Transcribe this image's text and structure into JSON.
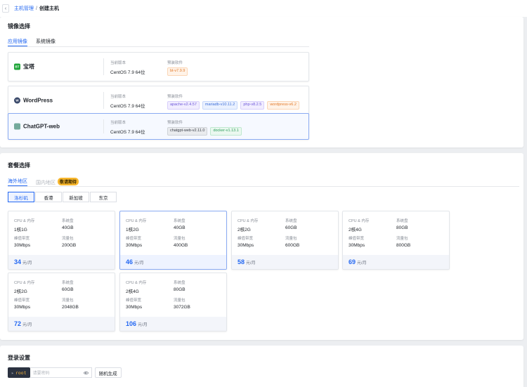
{
  "breadcrumb": {
    "parent": "主机管理",
    "separator": "/",
    "current": "创建主机"
  },
  "image_section": {
    "title": "镜像选择",
    "tabs": [
      {
        "label": "应用镜像",
        "active": true
      },
      {
        "label": "系统镜像",
        "active": false
      }
    ],
    "version_label": "当前版本",
    "software_label": "预装软件",
    "cards": [
      {
        "name": "宝塔",
        "logo": "BT",
        "logo_color": "#20a53a",
        "version": "CentOS 7.9 64位",
        "software": [
          {
            "label": "bt-v7.9.9",
            "color": "orange"
          }
        ],
        "selected": false
      },
      {
        "name": "WordPress",
        "logo": "W",
        "logo_color": "#3b4a6b",
        "version": "CentOS 7.9 64位",
        "software": [
          {
            "label": "apache-v2.4.57",
            "color": "purple"
          },
          {
            "label": "mariadb-v10.11.2",
            "color": "blue"
          },
          {
            "label": "php-v8.2.5",
            "color": "purple"
          },
          {
            "label": "wordpress-v6.2",
            "color": "orange"
          }
        ],
        "selected": false
      },
      {
        "name": "ChatGPT-web",
        "logo": "",
        "logo_color": "#74aa9c",
        "version": "CentOS 7.9 64位",
        "software": [
          {
            "label": "chatgpt-web-v2.11.0",
            "color": "gray"
          },
          {
            "label": "docker-v1.13.1",
            "color": "green"
          }
        ],
        "selected": true
      }
    ]
  },
  "plan_section": {
    "title": "套餐选择",
    "tabs": [
      {
        "label": "海外地区",
        "active": true,
        "disabled": false
      },
      {
        "label": "国内地区",
        "active": false,
        "disabled": true,
        "badge": "敬请期待"
      }
    ],
    "regions": [
      {
        "label": "洛杉矶",
        "active": true
      },
      {
        "label": "香港",
        "active": false
      },
      {
        "label": "新加坡",
        "active": false
      },
      {
        "label": "东京",
        "active": false
      }
    ],
    "labels": {
      "cpu_mem": "CPU & 内存",
      "disk": "系统盘",
      "bandwidth": "峰值带宽",
      "traffic": "流量包"
    },
    "price_unit": "元/月",
    "plans": [
      {
        "cpu_mem": "1核1G",
        "disk": "40GB",
        "bandwidth": "30Mbps",
        "traffic": "200GB",
        "price": "34",
        "selected": false
      },
      {
        "cpu_mem": "1核2G",
        "disk": "40GB",
        "bandwidth": "30Mbps",
        "traffic": "400GB",
        "price": "46",
        "selected": true
      },
      {
        "cpu_mem": "2核2G",
        "disk": "60GB",
        "bandwidth": "30Mbps",
        "traffic": "600GB",
        "price": "58",
        "selected": false
      },
      {
        "cpu_mem": "2核4G",
        "disk": "80GB",
        "bandwidth": "30Mbps",
        "traffic": "800GB",
        "price": "69",
        "selected": false
      },
      {
        "cpu_mem": "2核2G",
        "disk": "60GB",
        "bandwidth": "30Mbps",
        "traffic": "2048GB",
        "price": "72",
        "selected": false
      },
      {
        "cpu_mem": "2核4G",
        "disk": "80GB",
        "bandwidth": "30Mbps",
        "traffic": "3072GB",
        "price": "106",
        "selected": false
      }
    ]
  },
  "login_section": {
    "title": "登录设置",
    "username": "root",
    "password_placeholder": "请要密码",
    "generate_label": "随机生成"
  },
  "icons": {
    "back": "chevron-left-icon",
    "eye": "eye-icon"
  }
}
